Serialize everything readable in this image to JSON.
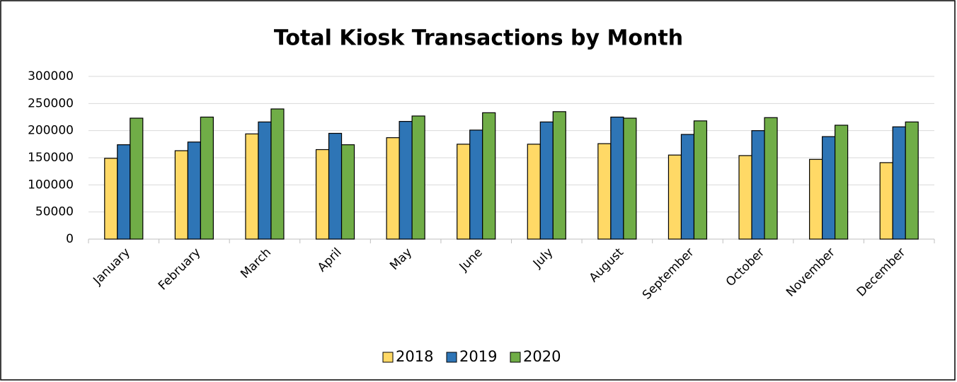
{
  "chart_data": {
    "type": "bar",
    "title": "Total Kiosk Transactions by Month",
    "categories": [
      "January",
      "February",
      "March",
      "April",
      "May",
      "June",
      "July",
      "August",
      "September",
      "October",
      "November",
      "December"
    ],
    "series": [
      {
        "name": "2018",
        "color": "#ffd966",
        "values": [
          149000,
          163000,
          194000,
          165000,
          187000,
          175000,
          175000,
          176000,
          155000,
          154000,
          147000,
          141000
        ]
      },
      {
        "name": "2019",
        "color": "#2e75b6",
        "values": [
          174000,
          179000,
          216000,
          195000,
          217000,
          201000,
          216000,
          225000,
          193000,
          200000,
          189000,
          207000
        ]
      },
      {
        "name": "2020",
        "color": "#70ad47",
        "values": [
          223000,
          225000,
          240000,
          174000,
          227000,
          233000,
          235000,
          223000,
          218000,
          224000,
          210000,
          216000
        ]
      }
    ],
    "ylim": [
      0,
      300000
    ],
    "yticks": [
      0,
      50000,
      100000,
      150000,
      200000,
      250000,
      300000
    ],
    "grid": true,
    "legend": "bottom"
  }
}
